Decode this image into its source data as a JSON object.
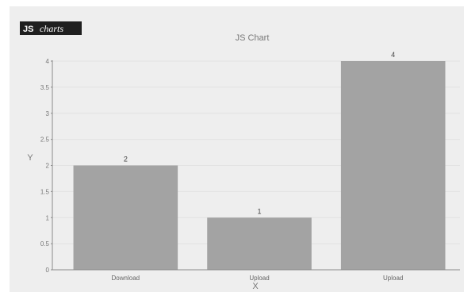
{
  "logo": {
    "badge": "JS",
    "word": "charts"
  },
  "colors": {
    "background": "#eeeeee",
    "bar": "#a3a3a3",
    "axis": "#8a8a8a",
    "grid": "#e2e2e2"
  },
  "chart_data": {
    "type": "bar",
    "title": "JS Chart",
    "xlabel": "X",
    "ylabel": "Y",
    "categories": [
      "Download",
      "Upload",
      "Upload"
    ],
    "values": [
      2,
      1,
      4
    ],
    "data_labels": [
      "2",
      "1",
      "4"
    ],
    "ylim": [
      0,
      4
    ],
    "yticks": [
      "0",
      "0.5",
      "1",
      "1.5",
      "2",
      "2.5",
      "3",
      "3.5",
      "4"
    ],
    "grid": true,
    "legend": "none"
  }
}
